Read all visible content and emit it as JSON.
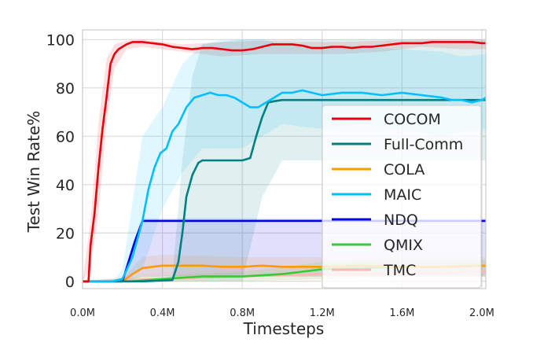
{
  "chart_data": {
    "type": "line",
    "xlabel": "Timesteps",
    "ylabel": "Test Win Rate%",
    "xlim": [
      0,
      2.02
    ],
    "ylim": [
      -3,
      104
    ],
    "x_ticks": [
      {
        "value": 0.0,
        "label": "0.0M"
      },
      {
        "value": 0.4,
        "label": "0.4M"
      },
      {
        "value": 0.8,
        "label": "0.8M"
      },
      {
        "value": 1.2,
        "label": "1.2M"
      },
      {
        "value": 1.6,
        "label": "1.6M"
      },
      {
        "value": 2.0,
        "label": "2.0M"
      }
    ],
    "y_ticks": [
      {
        "value": 0,
        "label": "0"
      },
      {
        "value": 20,
        "label": "20"
      },
      {
        "value": 40,
        "label": "40"
      },
      {
        "value": 60,
        "label": "60"
      },
      {
        "value": 80,
        "label": "80"
      },
      {
        "value": 100,
        "label": "100"
      }
    ],
    "grid": true,
    "legend_position": "right",
    "series": [
      {
        "name": "COCOM",
        "color": "#e8000b",
        "x": [
          0,
          0.03,
          0.04,
          0.06,
          0.08,
          0.1,
          0.12,
          0.14,
          0.16,
          0.18,
          0.2,
          0.22,
          0.25,
          0.28,
          0.3,
          0.35,
          0.4,
          0.45,
          0.5,
          0.55,
          0.6,
          0.65,
          0.7,
          0.75,
          0.8,
          0.85,
          0.9,
          0.95,
          1.0,
          1.05,
          1.1,
          1.15,
          1.2,
          1.25,
          1.3,
          1.35,
          1.4,
          1.45,
          1.5,
          1.55,
          1.6,
          1.65,
          1.7,
          1.75,
          1.8,
          1.85,
          1.9,
          1.95,
          2.0,
          2.02
        ],
        "values": [
          0,
          0,
          15,
          28,
          47,
          63,
          76,
          90,
          94,
          96,
          97,
          98,
          99,
          99,
          99,
          98.5,
          98,
          97,
          96.5,
          96,
          96.5,
          96.5,
          96,
          95.5,
          95.5,
          96,
          97,
          98,
          98,
          98,
          97.5,
          96.5,
          96.5,
          97,
          97,
          96.5,
          97,
          97,
          97.5,
          98,
          98.5,
          98.5,
          98.5,
          99,
          99,
          99,
          99,
          99,
          98.5,
          98.5
        ],
        "band": [
          [
            0,
            0,
            0
          ],
          [
            0.04,
            5,
            25
          ],
          [
            0.08,
            28,
            65
          ],
          [
            0.12,
            65,
            92
          ],
          [
            0.16,
            88,
            98
          ],
          [
            0.22,
            96,
            99.5
          ],
          [
            0.3,
            97,
            100
          ],
          [
            0.5,
            95,
            98
          ],
          [
            0.7,
            93,
            99
          ],
          [
            0.9,
            94,
            99.5
          ],
          [
            1.1,
            94,
            99
          ],
          [
            1.3,
            94,
            99
          ],
          [
            1.5,
            95,
            99.5
          ],
          [
            1.7,
            97,
            100
          ],
          [
            1.9,
            96,
            100
          ],
          [
            2.02,
            96,
            100
          ]
        ]
      },
      {
        "name": "Full-Comm",
        "color": "#008080",
        "x": [
          0,
          0.3,
          0.45,
          0.48,
          0.5,
          0.52,
          0.55,
          0.58,
          0.6,
          0.7,
          0.8,
          0.84,
          0.87,
          0.9,
          0.93,
          0.96,
          1.0,
          1.2,
          1.4,
          1.6,
          1.8,
          2.0,
          2.02
        ],
        "values": [
          0,
          0,
          0.5,
          8,
          20,
          35,
          44,
          49,
          50,
          50,
          50,
          51,
          60,
          68,
          74,
          74.5,
          75,
          75,
          75,
          75,
          75,
          75,
          75
        ],
        "band": [
          [
            0,
            0,
            0
          ],
          [
            0.3,
            0,
            0
          ],
          [
            0.45,
            0,
            2
          ],
          [
            0.5,
            0,
            50
          ],
          [
            0.55,
            0,
            85
          ],
          [
            0.6,
            0,
            98
          ],
          [
            0.8,
            0,
            100
          ],
          [
            0.9,
            35,
            100
          ],
          [
            1.0,
            50,
            100
          ],
          [
            1.4,
            50,
            100
          ],
          [
            1.8,
            50,
            100
          ],
          [
            2.02,
            50,
            100
          ]
        ]
      },
      {
        "name": "COLA",
        "color": "#ff9900",
        "x": [
          0,
          0.2,
          0.25,
          0.3,
          0.35,
          0.4,
          0.5,
          0.6,
          0.7,
          0.8,
          0.9,
          1.0,
          1.2,
          1.4,
          1.6,
          1.8,
          2.0,
          2.02
        ],
        "values": [
          0,
          0,
          3,
          5.5,
          6,
          6.5,
          6.5,
          6.5,
          6,
          6,
          6.5,
          6,
          6,
          6.5,
          6,
          6,
          6.5,
          6.5
        ],
        "band": [
          [
            0,
            0,
            0
          ],
          [
            0.2,
            0,
            1
          ],
          [
            0.3,
            1,
            10
          ],
          [
            0.4,
            2,
            11
          ],
          [
            0.8,
            2,
            10
          ],
          [
            1.2,
            2,
            10
          ],
          [
            1.6,
            2,
            10
          ],
          [
            2.02,
            2,
            10
          ]
        ]
      },
      {
        "name": "MAIC",
        "color": "#00bfff",
        "x": [
          0,
          0.15,
          0.2,
          0.25,
          0.3,
          0.33,
          0.36,
          0.39,
          0.42,
          0.45,
          0.48,
          0.52,
          0.56,
          0.6,
          0.64,
          0.68,
          0.72,
          0.76,
          0.8,
          0.84,
          0.88,
          0.92,
          0.96,
          1.0,
          1.05,
          1.1,
          1.2,
          1.3,
          1.4,
          1.5,
          1.6,
          1.7,
          1.8,
          1.85,
          1.9,
          1.95,
          2.0,
          2.02
        ],
        "values": [
          0,
          0,
          1,
          10,
          25,
          38,
          47,
          53,
          55,
          62,
          65,
          72,
          76,
          77,
          78,
          77,
          77,
          76,
          74,
          72,
          72,
          74,
          76,
          78,
          78,
          79,
          77,
          78,
          78,
          77,
          78,
          77,
          76,
          75,
          75,
          74,
          75,
          76
        ],
        "band": [
          [
            0,
            0,
            0
          ],
          [
            0.15,
            0,
            0
          ],
          [
            0.2,
            0,
            5
          ],
          [
            0.3,
            5,
            60
          ],
          [
            0.4,
            30,
            72
          ],
          [
            0.5,
            45,
            90
          ],
          [
            0.6,
            55,
            98
          ],
          [
            0.7,
            55,
            100
          ],
          [
            0.8,
            55,
            100
          ],
          [
            0.9,
            60,
            100
          ],
          [
            1.0,
            65,
            98
          ],
          [
            1.2,
            63,
            97
          ],
          [
            1.4,
            65,
            97
          ],
          [
            1.6,
            63,
            96
          ],
          [
            1.8,
            60,
            95
          ],
          [
            1.9,
            62,
            93
          ],
          [
            2.02,
            63,
            94
          ]
        ]
      },
      {
        "name": "NDQ",
        "color": "#0000e6",
        "x": [
          0,
          0.2,
          0.23,
          0.26,
          0.3,
          0.4,
          0.6,
          0.8,
          1.0,
          1.2,
          1.4,
          1.6,
          1.8,
          2.0,
          2.02
        ],
        "values": [
          0,
          0,
          8,
          16,
          25,
          25,
          25,
          25,
          25,
          25,
          25,
          25,
          25,
          25,
          25
        ],
        "band": [
          [
            0,
            0,
            0
          ],
          [
            0.2,
            0,
            0
          ],
          [
            0.3,
            2,
            26
          ],
          [
            0.5,
            2,
            26
          ],
          [
            1.0,
            2,
            26
          ],
          [
            1.5,
            2,
            26
          ],
          [
            2.02,
            2,
            26
          ]
        ]
      },
      {
        "name": "QMIX",
        "color": "#33cc33",
        "x": [
          0,
          0.25,
          0.4,
          0.6,
          0.8,
          0.9,
          1.0,
          1.1,
          1.2,
          1.4,
          1.6,
          1.8,
          2.0,
          2.02
        ],
        "values": [
          0,
          0,
          1,
          2,
          2,
          2.5,
          3,
          4,
          5,
          5.5,
          6,
          6,
          6.5,
          6.5
        ],
        "band": [
          [
            0,
            0,
            0
          ],
          [
            0.3,
            0,
            2
          ],
          [
            0.8,
            0,
            4
          ],
          [
            1.2,
            1,
            8
          ],
          [
            1.6,
            2,
            9
          ],
          [
            2.02,
            2,
            9
          ]
        ]
      },
      {
        "name": "TMC",
        "color": "#ffb6b6",
        "x": [
          0,
          0.2,
          0.4,
          0.6,
          0.8,
          1.0,
          1.2,
          1.4,
          1.6,
          1.8,
          2.0,
          2.02
        ],
        "values": [
          0,
          0.5,
          1,
          1.5,
          2,
          2.5,
          3,
          3,
          3.5,
          3.5,
          4,
          4
        ],
        "band": [
          [
            0,
            0,
            0
          ],
          [
            0.3,
            0,
            3
          ],
          [
            0.8,
            0,
            6
          ],
          [
            1.4,
            0,
            7
          ],
          [
            2.02,
            0,
            8
          ]
        ]
      }
    ]
  }
}
